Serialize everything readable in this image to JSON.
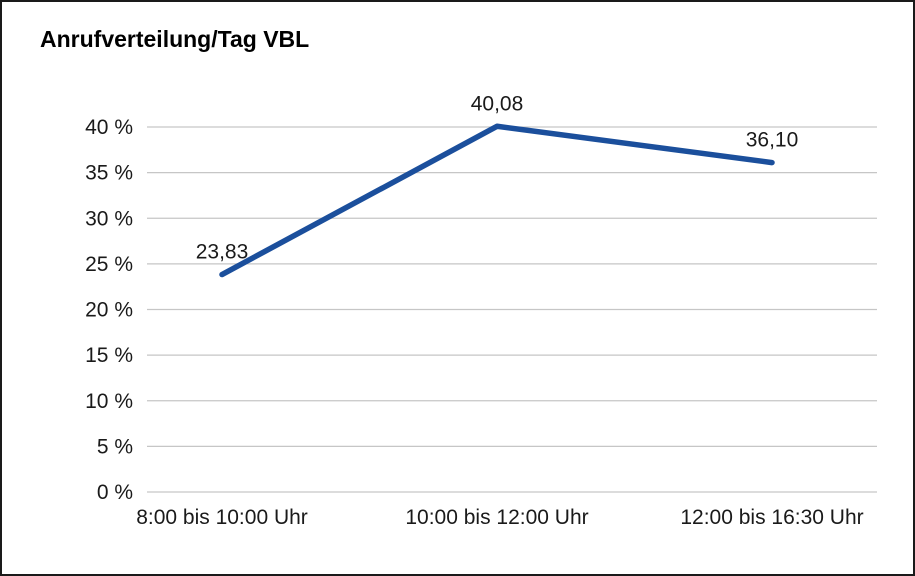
{
  "chart": {
    "title": "Anrufverteilung/Tag VBL"
  },
  "chart_data": {
    "type": "line",
    "title": "Anrufverteilung/Tag VBL",
    "categories": [
      "8:00 bis 10:00 Uhr",
      "10:00 bis 12:00 Uhr",
      "12:00 bis 16:30 Uhr"
    ],
    "values": [
      23.83,
      40.08,
      36.1
    ],
    "data_labels": [
      "23,83",
      "40,08",
      "36,10"
    ],
    "xlabel": "",
    "ylabel": "",
    "ylim": [
      0,
      40
    ],
    "ytick_step": 5,
    "ytick_labels": [
      "0 %",
      "5 %",
      "10 %",
      "15 %",
      "20 %",
      "25 %",
      "30 %",
      "35 %",
      "40 %"
    ],
    "grid": true,
    "legend_position": "none",
    "line_color": "#1b4f9c",
    "grid_color": "#c6c6c6",
    "text_color": "#1a1a1a"
  }
}
